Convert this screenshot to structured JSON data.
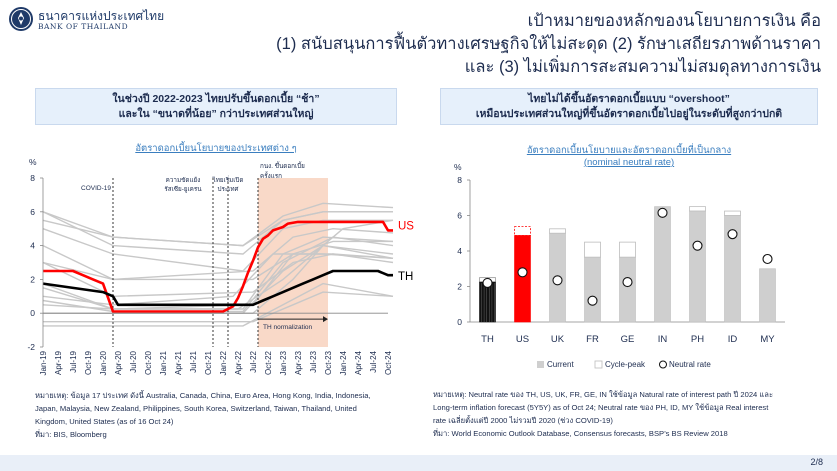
{
  "header": {
    "logo_th": "ธนาคารแห่งประเทศไทย",
    "logo_en": "BANK OF THAILAND",
    "title_lines": [
      "เป้าหมายของหลักของนโยบายการเงิน คือ",
      "(1) สนับสนุนการฟื้นตัวทางเศรษฐกิจให้ไม่สะดุด (2) รักษาเสถียรภาพด้านราคา",
      "และ (3) ไม่เพิ่มการสะสมความไม่สมดุลทางการเงิน"
    ]
  },
  "left_box": {
    "line1": "ในช่วงปี 2022-2023 ไทยปรับขึ้นดอกเบี้ย “ช้า”",
    "line2": "และใน “ขนาดที่น้อย” กว่าประเทศส่วนใหญ่"
  },
  "right_box": {
    "line1": "ไทยไม่ได้ขึ้นอัตราดอกเบี้ยแบบ “overshoot”",
    "line2": "เหมือนประเทศส่วนใหญ่ที่ขึ้นอัตราดอกเบี้ยไปอยู่ในระดับที่สูงกว่าปกติ"
  },
  "left_chart_title": "อัตราดอกเบี้ยนโยบายของประเทศต่าง ๆ",
  "right_chart_title_1": "อัตราดอกเบี้ยนโยบายและอัตราดอกเบี้ยที่เป็นกลาง",
  "right_chart_title_2": "(nominal neutral rate)",
  "chart_data": [
    {
      "type": "line",
      "title": "อัตราดอกเบี้ยนโยบายของประเทศต่าง ๆ",
      "ylabel": "%",
      "ylim": [
        -2,
        8
      ],
      "yticks": [
        "-2",
        "0",
        "2",
        "4",
        "6",
        "8"
      ],
      "x_ticks": [
        "Jan-19",
        "Apr-19",
        "Jul-19",
        "Oct-19",
        "Jan-20",
        "Apr-20",
        "Jul-20",
        "Oct-20",
        "Jan-21",
        "Apr-21",
        "Jul-21",
        "Oct-21",
        "Jan-22",
        "Apr-22",
        "Jul-22",
        "Oct-22",
        "Jan-23",
        "Apr-23",
        "Jul-23",
        "Oct-23",
        "Jan-24",
        "Apr-24",
        "Jul-24",
        "Oct-24"
      ],
      "annotations": [
        {
          "label": "COVID-19",
          "at": "Mar-20"
        },
        {
          "label_1": "ความขัดแย้ง",
          "label_2": "รัสเซีย-ยูเครน",
          "at": "Feb-22"
        },
        {
          "label_1": "ไทยเริ่มเปิด",
          "label_2": "ประเทศ",
          "at": "Nov-21"
        },
        {
          "label_1": "กนง. ขึ้นดอกเบี้ย",
          "label_2": "ครั้งแรก",
          "at": "Aug-22"
        },
        {
          "label": "TH normalization"
        }
      ],
      "shaded_period": [
        "Aug-22",
        "Oct-23"
      ],
      "series": [
        {
          "name": "US",
          "color": "#ff0000",
          "months": [
            0,
            6,
            8,
            10,
            12,
            14,
            36,
            38,
            39,
            40,
            41,
            42,
            43,
            44,
            45,
            46,
            48,
            49,
            51,
            53,
            54,
            68,
            69,
            70
          ],
          "values": [
            2.5,
            2.5,
            2.25,
            2.0,
            1.75,
            0.1,
            0.1,
            0.4,
            0.9,
            1.6,
            2.4,
            3.1,
            3.9,
            4.4,
            4.6,
            4.9,
            5.1,
            5.3,
            5.4,
            5.4,
            5.4,
            5.4,
            4.9,
            4.9
          ]
        },
        {
          "name": "TH",
          "color": "#000000",
          "months": [
            0,
            12,
            14,
            15,
            42,
            44,
            46,
            48,
            50,
            52,
            54,
            56,
            58,
            67,
            69,
            70
          ],
          "values": [
            1.75,
            1.25,
            1.0,
            0.5,
            0.5,
            0.75,
            1.0,
            1.25,
            1.5,
            1.75,
            2.0,
            2.25,
            2.5,
            2.5,
            2.25,
            2.25
          ]
        }
      ],
      "gray_series": [
        {
          "months": [
            0,
            14,
            39,
            48,
            60,
            70
          ],
          "values": [
            0.5,
            0.25,
            0.25,
            2.0,
            5.0,
            5.5
          ]
        },
        {
          "months": [
            0,
            14,
            40,
            48,
            58,
            70
          ],
          "values": [
            0.75,
            0.1,
            0.1,
            3.0,
            4.5,
            4.0
          ]
        },
        {
          "months": [
            0,
            14,
            42,
            50,
            58,
            70
          ],
          "values": [
            1.5,
            0.25,
            0.5,
            3.5,
            4.25,
            4.25
          ]
        },
        {
          "months": [
            0,
            14,
            40,
            48,
            56,
            70
          ],
          "values": [
            5.5,
            4.5,
            4.0,
            5.75,
            6.5,
            6.25
          ]
        },
        {
          "months": [
            0,
            14,
            40,
            48,
            56,
            70
          ],
          "values": [
            6.0,
            4.5,
            4.0,
            5.5,
            6.0,
            6.0
          ]
        },
        {
          "months": [
            0,
            14,
            40,
            48,
            56,
            70
          ],
          "values": [
            5.0,
            3.5,
            2.5,
            5.0,
            5.5,
            5.5
          ]
        },
        {
          "months": [
            0,
            14,
            42,
            50,
            58,
            70
          ],
          "values": [
            4.0,
            2.0,
            2.5,
            4.5,
            5.0,
            4.75
          ]
        },
        {
          "months": [
            0,
            14,
            42,
            50,
            58,
            70
          ],
          "values": [
            3.0,
            2.0,
            2.0,
            3.5,
            3.5,
            3.0
          ]
        },
        {
          "months": [
            0,
            14,
            40,
            48,
            56,
            70
          ],
          "values": [
            1.75,
            0.25,
            0.25,
            3.5,
            4.5,
            4.25
          ]
        },
        {
          "months": [
            0,
            14,
            38,
            46,
            56,
            70
          ],
          "values": [
            1.0,
            0.5,
            1.0,
            3.5,
            3.5,
            3.25
          ]
        },
        {
          "months": [
            0,
            14,
            42,
            50,
            56,
            70
          ],
          "values": [
            0.0,
            0.0,
            0.0,
            2.0,
            4.0,
            3.5
          ]
        },
        {
          "months": [
            0,
            14,
            40,
            48,
            56,
            70
          ],
          "values": [
            -0.75,
            -0.75,
            -0.75,
            0.5,
            1.75,
            1.0
          ]
        },
        {
          "months": [
            0,
            14,
            40,
            48,
            56,
            70
          ],
          "values": [
            0.0,
            0.0,
            0.0,
            2.5,
            4.0,
            3.25
          ]
        },
        {
          "months": [
            0,
            14,
            40,
            48,
            56,
            70
          ],
          "values": [
            6.0,
            4.0,
            3.5,
            5.5,
            6.0,
            6.0
          ]
        },
        {
          "months": [
            0,
            14,
            42,
            50,
            58,
            70
          ],
          "values": [
            3.0,
            1.0,
            1.25,
            3.0,
            3.5,
            3.25
          ]
        },
        {
          "months": [
            0,
            14,
            42,
            50,
            56,
            70
          ],
          "values": [
            -0.5,
            -0.5,
            -0.5,
            0.5,
            1.25,
            1.0
          ]
        }
      ],
      "legend_labels": [
        "US",
        "TH"
      ]
    },
    {
      "type": "bar",
      "ylabel": "%",
      "ylim": [
        0,
        8
      ],
      "yticks": [
        "0",
        "2",
        "4",
        "6",
        "8"
      ],
      "categories": [
        "TH",
        "US",
        "UK",
        "FR",
        "GE",
        "IN",
        "PH",
        "ID",
        "MY"
      ],
      "current": [
        2.25,
        4.875,
        5.0,
        3.65,
        3.65,
        6.5,
        6.25,
        6.0,
        3.0
      ],
      "cycle_peak": [
        2.5,
        5.375,
        5.25,
        4.5,
        4.5,
        6.5,
        6.5,
        6.25,
        3.0
      ],
      "neutral_rate": [
        2.2,
        2.8,
        2.35,
        1.2,
        2.25,
        6.15,
        4.3,
        4.95,
        3.55
      ],
      "legend": {
        "current": "Current",
        "cycle_peak": "Cycle-peak",
        "neutral": "Neutral rate"
      }
    }
  ],
  "notes_left": {
    "line1": "หมายเหตุ: ข้อมูล 17 ประเทศ ดังนี้ Australia, Canada, China, Euro Area, Hong Kong, India, Indonesia,",
    "line2": "Japan, Malaysia, New Zealand, Philippines, South Korea, Switzerland, Taiwan, Thailand, United",
    "line3": "Kingdom, United States (as of 16 Oct 24)",
    "line4": "ที่มา: BIS, Bloomberg"
  },
  "notes_right": {
    "line1": "หมายเหตุ: Neutral rate ของ TH, US, UK, FR, GE, IN ใช้ข้อมูล Natural rate of interest path ปี 2024 และ",
    "line2": "Long-term inflation forecast (5Y5Y) as of Oct 24; Neutral rate ของ PH, ID, MY ใช้ข้อมูล Real interest",
    "line3": "rate เฉลี่ยตั้งแต่ปี 2000 ไม่รวมปี 2020 (ช่วง COVID-19)",
    "line4": "ที่มา: World Economic Outlook Database, Consensus forecasts, BSP’s BS Review 2018"
  },
  "page_number": "2/8"
}
